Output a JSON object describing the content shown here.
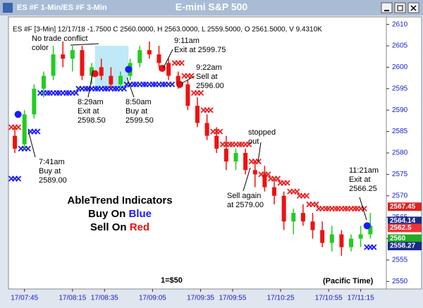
{
  "chart_data": {
    "type": "candlestick",
    "window_title": "ES #F 1-Min/ES #F 3-Min",
    "title": "E-mini S&P 500",
    "info": "ES #F [3-Min] 12/17/18  -1.7500 C 2560.0000, H 2563.0000, L 2559.5000, O 2561.5000, V 9.4310K",
    "x": [
      459,
      465,
      471,
      477,
      483,
      489,
      495,
      501,
      507,
      513,
      519,
      525,
      531,
      537,
      543,
      549,
      555,
      561,
      567,
      573,
      579,
      585,
      591,
      597,
      603,
      609,
      615,
      621,
      627,
      633,
      639,
      645,
      651,
      657,
      663,
      669,
      675,
      681
    ],
    "open": [
      2584,
      2582,
      2589,
      2595,
      2598,
      2603,
      2602,
      2604,
      2598,
      2600,
      2598,
      2596,
      2598,
      2601,
      2604,
      2603,
      2601,
      2598,
      2596,
      2591,
      2587,
      2584,
      2581,
      2578,
      2580,
      2576,
      2575,
      2572,
      2570,
      2564,
      2566,
      2564,
      2562,
      2559,
      2561,
      2558,
      2560,
      2561
    ],
    "high": [
      2586,
      2590,
      2596,
      2599,
      2605,
      2606,
      2605,
      2605,
      2601,
      2602,
      2600,
      2599,
      2602,
      2605,
      2606,
      2605,
      2602,
      2599,
      2597,
      2593,
      2589,
      2586,
      2584,
      2581,
      2581,
      2578,
      2577,
      2574,
      2571,
      2567,
      2568,
      2566,
      2564,
      2563,
      2562,
      2561,
      2563,
      2566
    ],
    "low": [
      2580,
      2581,
      2588,
      2593,
      2597,
      2600,
      2599,
      2597,
      2596,
      2597,
      2595,
      2595,
      2597,
      2600,
      2602,
      2600,
      2597,
      2595,
      2590,
      2586,
      2583,
      2580,
      2576,
      2576,
      2575,
      2572,
      2571,
      2568,
      2562,
      2561,
      2563,
      2560,
      2558,
      2557,
      2556,
      2557,
      2558,
      2560
    ],
    "close": [
      2581,
      2589,
      2595,
      2598,
      2603,
      2602,
      2604,
      2598,
      2600,
      2598,
      2596,
      2598,
      2601,
      2604,
      2603,
      2601,
      2598,
      2596,
      2591,
      2587,
      2584,
      2581,
      2578,
      2580,
      2576,
      2575,
      2572,
      2570,
      2564,
      2566,
      2564,
      2562,
      2559,
      2561,
      2558,
      2560,
      2561,
      2563
    ],
    "up_color": "#22cc22",
    "down_color": "#ee1111",
    "support": {
      "color": "#1a1aff",
      "values": [
        2574,
        2581,
        2585,
        2594,
        2594,
        2594,
        2594,
        2595,
        2595,
        2595,
        2595,
        2595,
        2596,
        2596,
        2596,
        2596,
        2596,
        null,
        null,
        null,
        null,
        null,
        null,
        null,
        null,
        null,
        null,
        null,
        null,
        null,
        null,
        null,
        null,
        null,
        null,
        null,
        null,
        2558
      ]
    },
    "resistance": {
      "color": "#ee2222",
      "values": [
        2586,
        null,
        null,
        null,
        null,
        null,
        null,
        null,
        null,
        null,
        null,
        null,
        null,
        null,
        null,
        null,
        null,
        2601,
        2598,
        2594,
        2590,
        2585,
        2582,
        2582,
        2582,
        2578,
        2575,
        2574,
        2573,
        2571,
        2570,
        2568,
        2567,
        2567,
        2567,
        2567,
        2567,
        null
      ]
    },
    "signals": [
      {
        "x": 461,
        "value": 2589,
        "color": "#1a1aff"
      },
      {
        "x": 509,
        "value": 2598.5,
        "color": "#ee1111"
      },
      {
        "x": 530,
        "value": 2599.5,
        "color": "#1a1aff"
      },
      {
        "x": 551,
        "value": 2599.75,
        "color": "#ee1111"
      },
      {
        "x": 562,
        "value": 2596,
        "color": "#cc1111"
      },
      {
        "x": 679,
        "value": 2563,
        "color": "#1a1aff"
      }
    ],
    "highlight": {
      "x": [
        509,
        530
      ],
      "y": [
        2595,
        2605
      ],
      "color": "#bfe9f7"
    },
    "annotations": [
      {
        "lines": [
          "No trade conflict",
          "color"
        ]
      },
      {
        "lines": [
          "9:11am",
          "Exit at 2599.75"
        ]
      },
      {
        "lines": [
          "9:22am",
          "Sell at",
          "2596.00"
        ]
      },
      {
        "lines": [
          "8:29am",
          "Exit at",
          "2598.50"
        ]
      },
      {
        "lines": [
          "8:50am",
          "Buy at",
          "2599.50"
        ]
      },
      {
        "lines": [
          "stopped",
          "out"
        ]
      },
      {
        "lines": [
          "7:41am",
          "Buy at",
          "2589.00"
        ]
      },
      {
        "lines": [
          "Sell again",
          "at 2579.00"
        ]
      },
      {
        "lines": [
          "11:21am",
          "Exit at",
          "2566.25"
        ]
      }
    ],
    "legend_text": [
      [
        {
          "text": "AbleTrend Indicators",
          "color": "#000000"
        }
      ],
      [
        {
          "text": "Buy On ",
          "color": "#000000"
        },
        {
          "text": "Blue",
          "color": "#1a1aff"
        }
      ],
      [
        {
          "text": "Sell On ",
          "color": "#000000"
        },
        {
          "text": "Red",
          "color": "#ee1111"
        }
      ]
    ],
    "scale_note": "1=$50",
    "time_note": "(Pacific Time)",
    "price_labels": [
      {
        "value": 2567.45,
        "color": "#dd2222"
      },
      {
        "value": 2564.14,
        "color": "#1a2a8a"
      },
      {
        "value": 2562.5,
        "color": "#ee3333"
      },
      {
        "value": 2560,
        "color": "#22aa22"
      },
      {
        "value": 2558.27,
        "color": "#1a2a8a"
      }
    ],
    "xlim": [
      455,
      691
    ],
    "xticks": [
      {
        "value": 465,
        "label": "17/07:45"
      },
      {
        "value": 495,
        "label": "17/08:15"
      },
      {
        "value": 515,
        "label": "17/08:35"
      },
      {
        "value": 545,
        "label": "17/09:05"
      },
      {
        "value": 575,
        "label": "17/09:35"
      },
      {
        "value": 595,
        "label": "17/09:55"
      },
      {
        "value": 625,
        "label": "17/10:25"
      },
      {
        "value": 655,
        "label": "17/10:55"
      },
      {
        "value": 675,
        "label": "17/11:15"
      }
    ],
    "ylim": [
      2548.25,
      2611.75
    ],
    "yticks": [
      2550,
      2555,
      2560,
      2565,
      2570,
      2575,
      2580,
      2585,
      2590,
      2595,
      2600,
      2605,
      2610
    ]
  }
}
